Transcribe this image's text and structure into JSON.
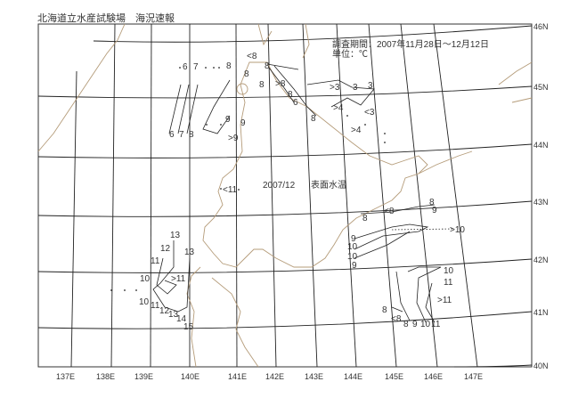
{
  "header": {
    "title": "北海道立水産試験場　海況速報"
  },
  "map": {
    "period": "調査期間：2007年11月28日～12月12日",
    "unit": "単位：℃",
    "date": "2007/12",
    "variable": "表面水温",
    "lat_labels": [
      "46N",
      "45N",
      "44N",
      "43N",
      "42N",
      "41N",
      "40N"
    ],
    "lon_labels": [
      "137E",
      "138E",
      "139E",
      "140E",
      "141E",
      "142E",
      "143E",
      "144E",
      "145E",
      "146E",
      "147E"
    ],
    "contour_labels_north": [
      "6",
      "7",
      "8",
      "<8",
      "8",
      "8",
      "8",
      ">8",
      "8",
      "6",
      "8",
      "9",
      "9",
      ">9",
      "6",
      "7",
      "8",
      ">3",
      "3",
      "3",
      ">4",
      "<3",
      ">4",
      "<11"
    ],
    "contour_labels_west": [
      "13",
      "12",
      "13",
      "11",
      "10",
      ">11",
      "10",
      "11",
      "12",
      "13",
      "14",
      "15"
    ],
    "contour_labels_east": [
      "8",
      "9",
      "<8",
      "8",
      ">10",
      "9",
      "10",
      "10",
      "9",
      "10",
      "11",
      ">11",
      "8",
      "<8",
      "8",
      "9",
      "10",
      "11"
    ],
    "colors": {
      "coast": "#b59c7a",
      "grid": "#222222",
      "contour": "#222222"
    }
  }
}
